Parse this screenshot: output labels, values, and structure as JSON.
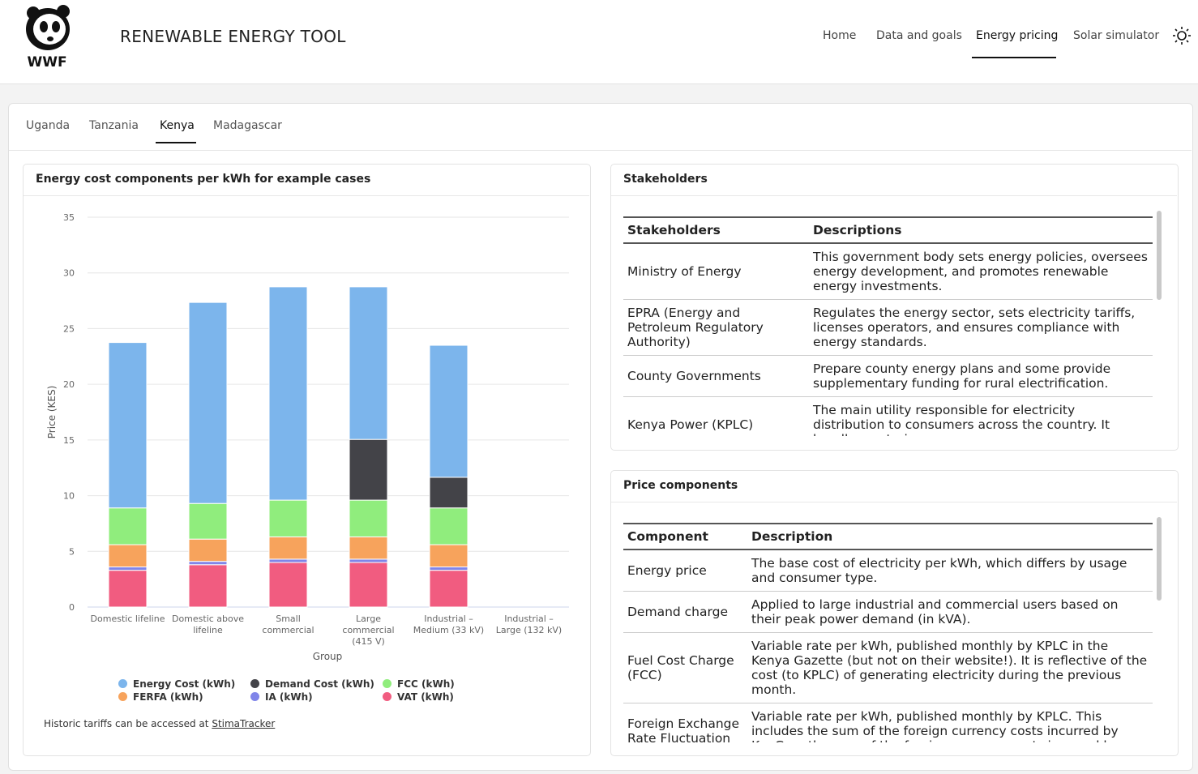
{
  "header": {
    "logo_text": "WWF",
    "title": "RENEWABLE ENERGY TOOL",
    "nav": [
      "Home",
      "Data and goals",
      "Energy pricing",
      "Solar simulator"
    ],
    "active_nav": 2
  },
  "tabs": {
    "items": [
      "Uganda",
      "Tanzania",
      "Kenya",
      "Madagascar"
    ],
    "active": 2
  },
  "chart_panel": {
    "title": "Energy cost components per kWh for example cases",
    "chart_data": {
      "type": "bar",
      "stacked": true,
      "categories": [
        "Domestic lifeline",
        "Domestic above lifeline",
        "Small commercial",
        "Large commercial (415 V)",
        "Industrial – Medium (33 kV)",
        "Industrial – Large (132 kV)"
      ],
      "x_label": "Group",
      "y_label": "Price (KES)",
      "ylim": [
        0,
        35
      ],
      "yticks": [
        0,
        5,
        10,
        15,
        20,
        25,
        30,
        35
      ],
      "grid": true,
      "series": [
        {
          "name": "VAT (kWh)",
          "color": "#f15c80",
          "values": [
            3.3,
            3.8,
            4.0,
            4.0,
            3.3,
            null
          ]
        },
        {
          "name": "IA (kWh)",
          "color": "#8085e9",
          "values": [
            0.3,
            0.3,
            0.3,
            0.3,
            0.3,
            null
          ]
        },
        {
          "name": "FERFA (kWh)",
          "color": "#f7a35c",
          "values": [
            2.0,
            2.0,
            2.0,
            2.0,
            2.0,
            null
          ]
        },
        {
          "name": "FCC (kWh)",
          "color": "#90ed7d",
          "values": [
            3.3,
            3.2,
            3.3,
            3.3,
            3.3,
            null
          ]
        },
        {
          "name": "Demand Cost (kWh)",
          "color": "#434348",
          "values": [
            0,
            0,
            0,
            5.45,
            2.75,
            null
          ]
        },
        {
          "name": "Energy Cost (kWh)",
          "color": "#7cb5ec",
          "values": [
            14.85,
            18.05,
            19.15,
            13.7,
            11.85,
            null
          ]
        }
      ],
      "legend_order": [
        5,
        4,
        3,
        2,
        1,
        0
      ]
    },
    "note": {
      "text": "Historic tariffs can be accessed at",
      "link": "StimaTracker"
    }
  },
  "stakeholders": {
    "title": "Stakeholders",
    "columns": [
      "Stakeholders",
      "Descriptions"
    ],
    "rows": [
      [
        "Ministry of Energy",
        "This government body sets energy policies, oversees energy development, and promotes renewable energy investments."
      ],
      [
        "EPRA (Energy and Petroleum Regulatory Authority)",
        "Regulates the energy sector, sets electricity tariffs, licenses operators, and ensures compliance with energy standards."
      ],
      [
        "County Governments",
        "Prepare county energy plans and some provide supplementary funding for rural electrification."
      ],
      [
        "Kenya Power (KPLC)",
        "The main utility responsible for electricity distribution to consumers across the country. It handles metering,"
      ]
    ]
  },
  "price_components": {
    "title": "Price components",
    "columns": [
      "Component",
      "Description"
    ],
    "rows": [
      [
        "Energy price",
        "The base cost of electricity per kWh, which differs by usage and consumer type."
      ],
      [
        "Demand charge",
        "Applied to large industrial and commercial users based on their peak power demand (in kVA)."
      ],
      [
        "Fuel Cost Charge (FCC)",
        "Variable rate per kWh, published monthly by KPLC in the Kenya Gazette (but not on their website!). It is reflective of the cost (to KPLC) of generating electricity during the previous month."
      ],
      [
        "Foreign Exchange Rate Fluctuation Adjustment",
        "Variable rate per kWh, published monthly by KPLC. This includes the sum of the foreign currency costs incurred by KenGen, the sum of the foreign currency costs incurred by KPLC other than those"
      ]
    ]
  }
}
